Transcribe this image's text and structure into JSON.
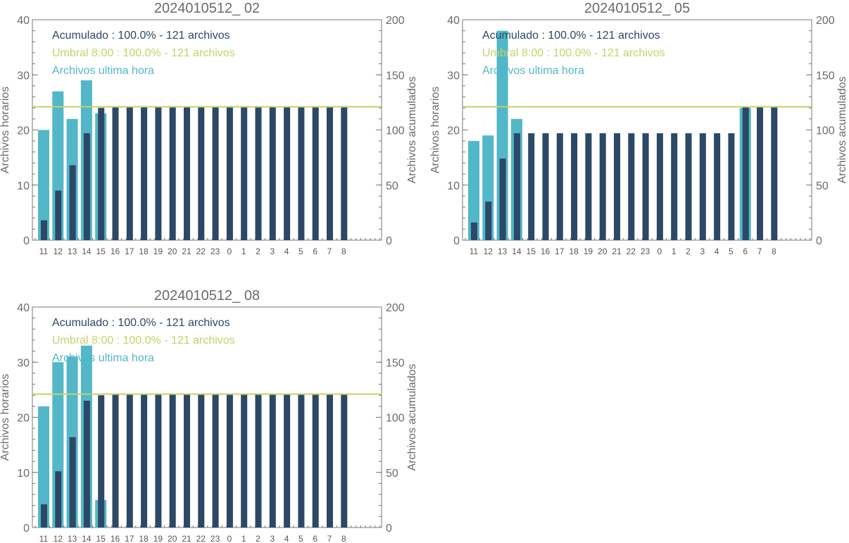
{
  "colors": {
    "hourly_bar": "#52b7c8",
    "cumulative_bar": "#2c4866",
    "threshold_line": "#c8d16a",
    "axis": "#777777",
    "text": "#6b6b6b"
  },
  "chart_data": [
    {
      "type": "bar",
      "title": "2024010512_ 02",
      "ylabel": "Archivos horarios",
      "ylabel_right": "Archivos acumulados",
      "ylim": [
        0,
        40
      ],
      "ylim_right": [
        0,
        200
      ],
      "yticks": [
        0,
        10,
        20,
        30,
        40
      ],
      "yticks_right": [
        0,
        50,
        100,
        150,
        200
      ],
      "categories": [
        "11",
        "12",
        "13",
        "14",
        "15",
        "16",
        "17",
        "18",
        "19",
        "20",
        "21",
        "22",
        "23",
        "0",
        "1",
        "2",
        "3",
        "4",
        "5",
        "6",
        "7",
        "8"
      ],
      "series": [
        {
          "name": "Archivos ultima hora",
          "axis": "left",
          "values": [
            20,
            27,
            22,
            29,
            23,
            0,
            0,
            0,
            0,
            0,
            0,
            0,
            0,
            0,
            0,
            0,
            0,
            0,
            0,
            0,
            0,
            0
          ]
        },
        {
          "name": "Acumulado",
          "axis": "right",
          "values": [
            18,
            45,
            68,
            97,
            120,
            121,
            121,
            121,
            121,
            121,
            121,
            121,
            121,
            121,
            121,
            121,
            121,
            121,
            121,
            121,
            121,
            121
          ]
        }
      ],
      "threshold": {
        "axis": "right",
        "value": 121
      },
      "legend": [
        {
          "text": "Acumulado : 100.0% - 121 archivos",
          "color_key": "cumulative_bar"
        },
        {
          "text": "Umbral 8:00 : 100.0% - 121 archivos",
          "color_key": "threshold_line"
        },
        {
          "text": "Archivos ultima hora",
          "color_key": "hourly_bar"
        }
      ],
      "legend_position": "top-left"
    },
    {
      "type": "bar",
      "title": "2024010512_ 05",
      "ylabel": "Archivos horarios",
      "ylabel_right": "Archivos acumulados",
      "ylim": [
        0,
        40
      ],
      "ylim_right": [
        0,
        200
      ],
      "yticks": [
        0,
        10,
        20,
        30,
        40
      ],
      "yticks_right": [
        0,
        50,
        100,
        150,
        200
      ],
      "categories": [
        "11",
        "12",
        "13",
        "14",
        "15",
        "16",
        "17",
        "18",
        "19",
        "20",
        "21",
        "22",
        "23",
        "0",
        "1",
        "2",
        "3",
        "4",
        "5",
        "6",
        "7",
        "8"
      ],
      "series": [
        {
          "name": "Archivos ultima hora",
          "axis": "left",
          "values": [
            18,
            19,
            38,
            22,
            0,
            0,
            0,
            0,
            0,
            0,
            0,
            0,
            0,
            0,
            0,
            0,
            0,
            0,
            0,
            24,
            0,
            0
          ]
        },
        {
          "name": "Acumulado",
          "axis": "right",
          "values": [
            16,
            35,
            74,
            97,
            97,
            97,
            97,
            97,
            97,
            97,
            97,
            97,
            97,
            97,
            97,
            97,
            97,
            97,
            97,
            121,
            121,
            121
          ]
        }
      ],
      "threshold": {
        "axis": "right",
        "value": 121
      },
      "legend": [
        {
          "text": "Acumulado : 100.0% - 121 archivos",
          "color_key": "cumulative_bar"
        },
        {
          "text": "Umbral 8:00 : 100.0% - 121 archivos",
          "color_key": "threshold_line"
        },
        {
          "text": "Archivos ultima hora",
          "color_key": "hourly_bar"
        }
      ],
      "legend_position": "top-left"
    },
    {
      "type": "bar",
      "title": "2024010512_ 08",
      "ylabel": "Archivos horarios",
      "ylabel_right": "Archivos acumulados",
      "ylim": [
        0,
        40
      ],
      "ylim_right": [
        0,
        200
      ],
      "yticks": [
        0,
        10,
        20,
        30,
        40
      ],
      "yticks_right": [
        0,
        50,
        100,
        150,
        200
      ],
      "categories": [
        "11",
        "12",
        "13",
        "14",
        "15",
        "16",
        "17",
        "18",
        "19",
        "20",
        "21",
        "22",
        "23",
        "0",
        "1",
        "2",
        "3",
        "4",
        "5",
        "6",
        "7",
        "8"
      ],
      "series": [
        {
          "name": "Archivos ultima hora",
          "axis": "left",
          "values": [
            22,
            30,
            31,
            33,
            5,
            0,
            0,
            0,
            0,
            0,
            0,
            0,
            0,
            0,
            0,
            0,
            0,
            0,
            0,
            0,
            0,
            0
          ]
        },
        {
          "name": "Acumulado",
          "axis": "right",
          "values": [
            21,
            51,
            82,
            115,
            120,
            121,
            121,
            121,
            121,
            121,
            121,
            121,
            121,
            121,
            121,
            121,
            121,
            121,
            121,
            121,
            121,
            121
          ]
        }
      ],
      "threshold": {
        "axis": "right",
        "value": 121
      },
      "legend": [
        {
          "text": "Acumulado : 100.0% - 121 archivos",
          "color_key": "cumulative_bar"
        },
        {
          "text": "Umbral 8:00 : 100.0% - 121 archivos",
          "color_key": "threshold_line"
        },
        {
          "text": "Archivos ultima hora",
          "color_key": "hourly_bar"
        }
      ],
      "legend_position": "top-left"
    }
  ]
}
